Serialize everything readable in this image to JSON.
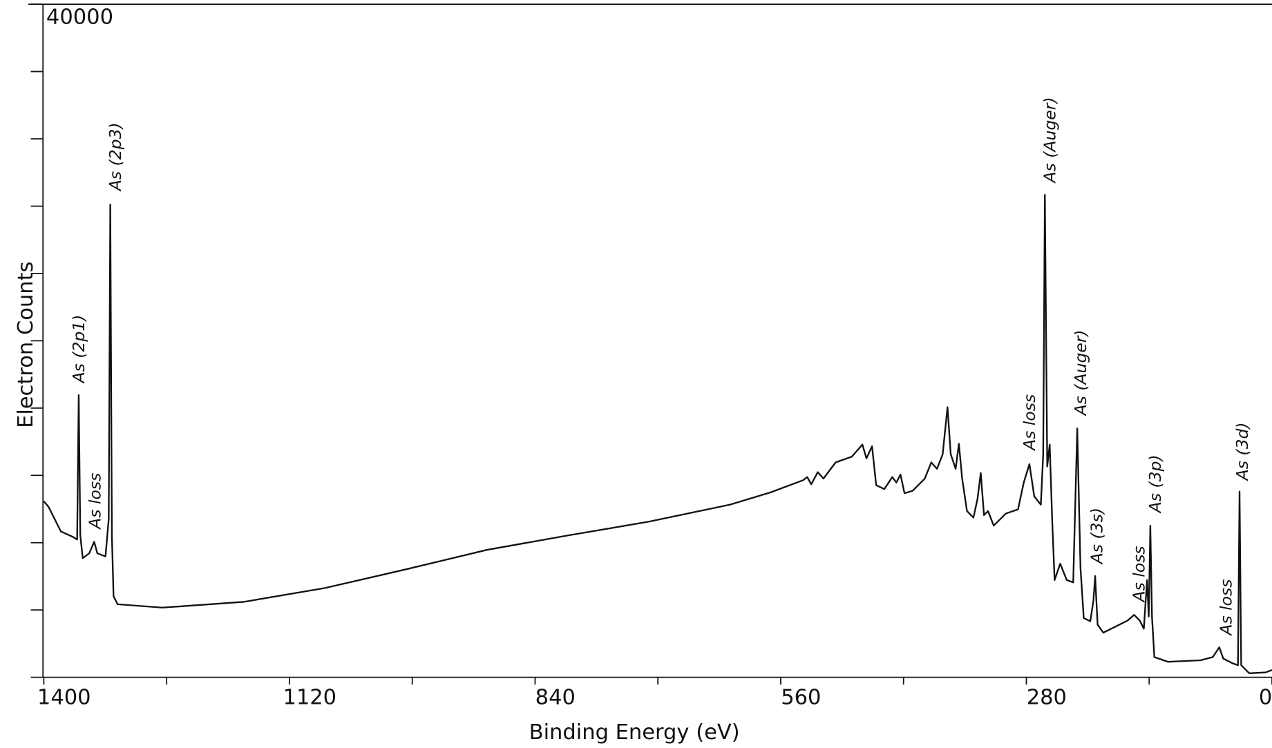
{
  "chart_data": {
    "type": "line",
    "xlabel": "Binding Energy  (eV)",
    "ylabel": "Electron Counts",
    "xlim": [
      1400,
      0
    ],
    "ylim": [
      0,
      40000
    ],
    "xticks": [
      1400,
      {
        "value": 1260,
        "label": null
      },
      1120,
      {
        "value": 980,
        "label": null
      },
      840,
      {
        "value": 700,
        "label": null
      },
      560,
      {
        "value": 420,
        "label": null
      },
      280,
      {
        "value": 140,
        "label": null
      },
      0
    ],
    "yticks": [
      {
        "value": 0,
        "label": null
      },
      {
        "value": 4000,
        "label": null
      },
      {
        "value": 8000,
        "label": null
      },
      {
        "value": 12000,
        "label": null
      },
      {
        "value": 16000,
        "label": null
      },
      {
        "value": 20000,
        "label": null
      },
      {
        "value": 24000,
        "label": null
      },
      {
        "value": 28000,
        "label": null
      },
      {
        "value": 32000,
        "label": null
      },
      {
        "value": 36000,
        "label": null
      },
      40000
    ],
    "color": "#111111",
    "x": [
      1400,
      1394.5,
      1380.6,
      1366.7,
      1362,
      1360.2,
      1358.4,
      1355.6,
      1348.2,
      1342.6,
      1339,
      1329.7,
      1326,
      1324.2,
      1322.4,
      1320.5,
      1315.9,
      1265,
      1172.5,
      1080,
      987.6,
      895.1,
      802.6,
      710.2,
      617.7,
      571.5,
      534.5,
      529.8,
      525.2,
      517.8,
      511.3,
      497.4,
      479,
      466.9,
      462.3,
      455.9,
      451.2,
      442,
      432.8,
      428.2,
      423.5,
      418.9,
      409.7,
      395.8,
      388.4,
      381.9,
      375.4,
      369.9,
      366.2,
      360.6,
      356.9,
      353.2,
      347.7,
      340.3,
      335.7,
      332,
      328.3,
      323.7,
      317.2,
      303.4,
      289.5,
      283,
      276.5,
      271,
      263.5,
      260.8,
      258.9,
      256.2,
      253.4,
      250.6,
      247.8,
      241.4,
      234,
      226.6,
      222,
      218.3,
      214.6,
      207.1,
      203.5,
      201.6,
      198.8,
      192.3,
      173.8,
      164.6,
      157.2,
      150.7,
      146.1,
      142.4,
      140.5,
      138.7,
      136.8,
      134.1,
      118.4,
      81.4,
      67.5,
      60.1,
      55.5,
      44.4,
      38.8,
      37,
      35.1,
      25.9,
      7.4,
      0
    ],
    "values": [
      10460,
      10120,
      8670,
      8340,
      8190,
      16770,
      8430,
      7080,
      7370,
      8050,
      7370,
      7180,
      9400,
      28100,
      8430,
      4820,
      4340,
      4140,
      4480,
      5300,
      6410,
      7570,
      8430,
      9250,
      10260,
      10990,
      11710,
      11900,
      11470,
      12190,
      11810,
      12770,
      13110,
      13830,
      13010,
      13730,
      11420,
      11180,
      11900,
      11570,
      12050,
      10940,
      11080,
      11810,
      12770,
      12390,
      13250,
      16050,
      13250,
      12390,
      13880,
      11810,
      9880,
      9490,
      10600,
      12140,
      9640,
      9880,
      9010,
      9730,
      9980,
      11570,
      12670,
      10750,
      10260,
      13250,
      28670,
      12530,
      13830,
      9400,
      5780,
      6750,
      5780,
      5640,
      14790,
      6510,
      3520,
      3330,
      4580,
      6020,
      3130,
      2650,
      3130,
      3370,
      3710,
      3370,
      2890,
      5780,
      3610,
      9010,
      3610,
      1200,
      920,
      1010,
      1200,
      1780,
      1110,
      820,
      720,
      11040,
      720,
      240,
      290,
      430
    ],
    "annotations": [
      "As (2p1)",
      "As loss",
      "As (2p3)",
      "As (Auger)",
      "As loss",
      "As (Auger)",
      "As (3s)",
      "As loss",
      "As (3p)",
      "As (3d)",
      "As loss"
    ]
  }
}
